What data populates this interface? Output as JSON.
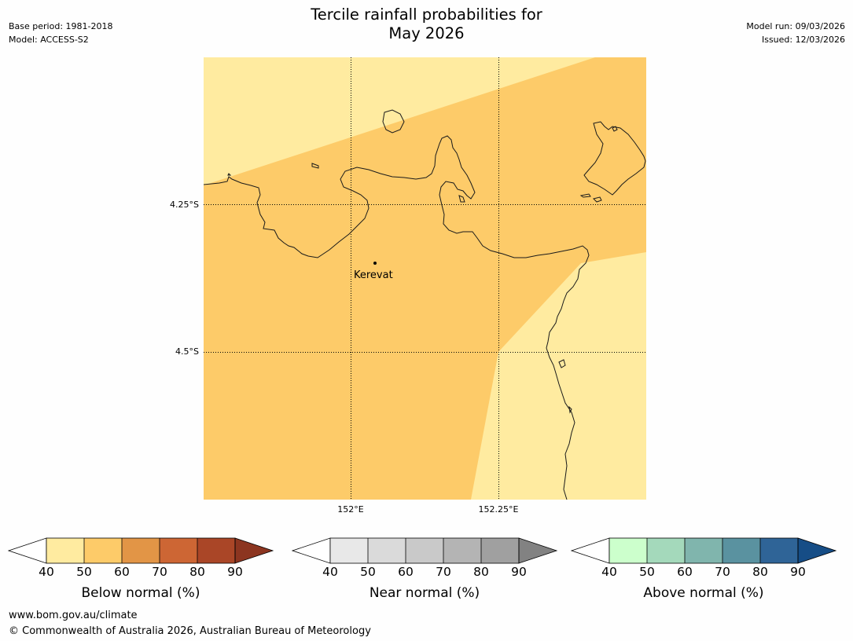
{
  "header": {
    "title_line1": "Tercile rainfall probabilities for",
    "title_line2": "May 2026",
    "base_period": "Base period: 1981-2018",
    "model": "Model: ACCESS-S2",
    "model_run": "Model run: 09/03/2026",
    "issued": "Issued: 12/03/2026"
  },
  "map": {
    "lat_labels": [
      "4.25°S",
      "4.5°S"
    ],
    "lon_labels": [
      "152°E",
      "152.25°E"
    ],
    "place": "Kerevat",
    "colors": {
      "class_40_50": "#ffeba0",
      "class_50_60": "#fdcb69",
      "coastline": "#1a1a1a",
      "gridline": "#000000"
    }
  },
  "legends": [
    {
      "title": "Below normal (%)",
      "ticks": [
        "40",
        "50",
        "60",
        "70",
        "80",
        "90"
      ],
      "colors": [
        "#ffeba0",
        "#fdcb69",
        "#e29546",
        "#cd6634",
        "#aa4627"
      ],
      "over_color": "#8c3520"
    },
    {
      "title": "Near normal (%)",
      "ticks": [
        "40",
        "50",
        "60",
        "70",
        "80",
        "90"
      ],
      "colors": [
        "#e8e8e8",
        "#dadada",
        "#c9c9c9",
        "#b4b4b4",
        "#a0a0a0"
      ],
      "over_color": "#828282"
    },
    {
      "title": "Above normal (%)",
      "ticks": [
        "40",
        "50",
        "60",
        "70",
        "80",
        "90"
      ],
      "colors": [
        "#ccffcc",
        "#a4d9bb",
        "#80b5ad",
        "#5a92a0",
        "#2f6497"
      ],
      "over_color": "#164d86"
    }
  ],
  "footer": {
    "url": "www.bom.gov.au/climate",
    "copyright": "© Commonwealth of Australia 2026, Australian Bureau of Meteorology"
  }
}
